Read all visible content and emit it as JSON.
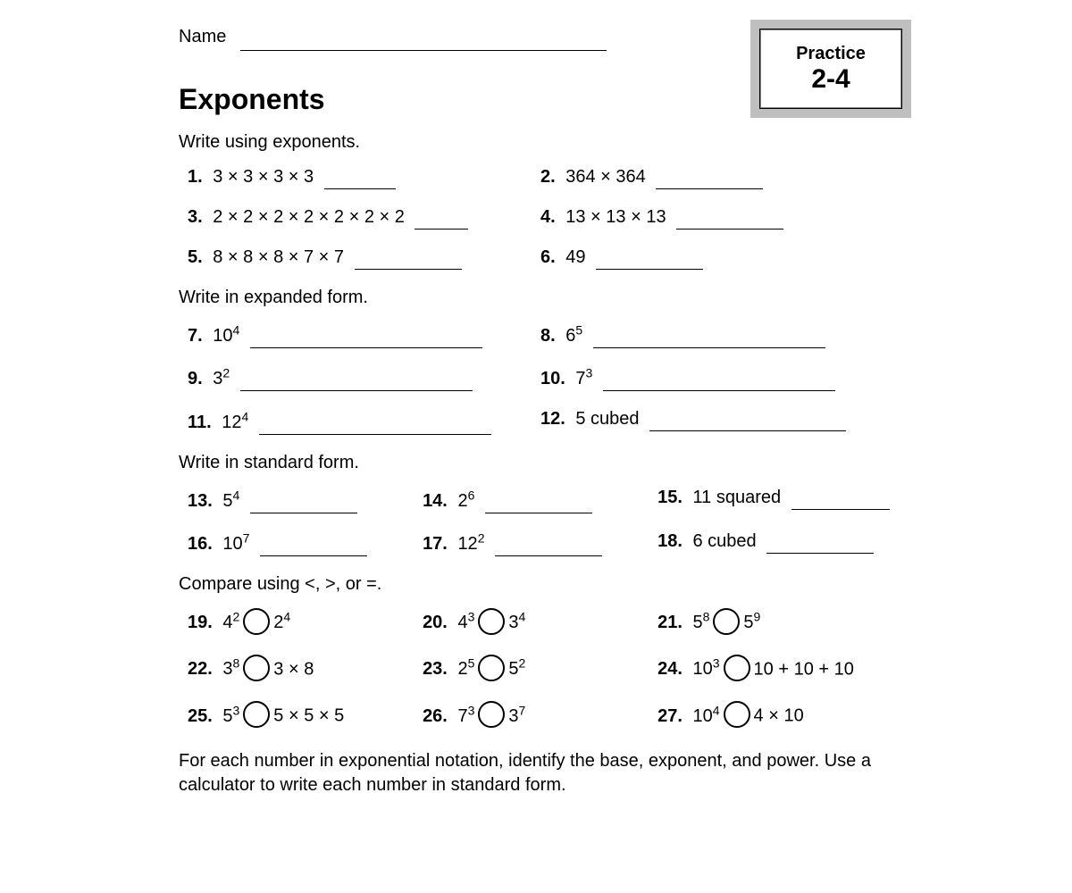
{
  "header": {
    "name_label": "Name",
    "badge_label": "Practice",
    "badge_number": "2-4"
  },
  "title": "Exponents",
  "section1": {
    "instruction": "Write using exponents.",
    "items": [
      {
        "n": "1.",
        "e": "3 × 3 × 3 × 3"
      },
      {
        "n": "2.",
        "e": "364 × 364"
      },
      {
        "n": "3.",
        "e": "2 × 2 × 2 × 2 × 2 × 2 × 2"
      },
      {
        "n": "4.",
        "e": "13 × 13 × 13"
      },
      {
        "n": "5.",
        "e": "8 × 8 × 8 × 7 × 7"
      },
      {
        "n": "6.",
        "e": "49"
      }
    ]
  },
  "section2": {
    "instruction": "Write in expanded form.",
    "items": [
      {
        "n": "7.",
        "b": "10",
        "s": "4"
      },
      {
        "n": "8.",
        "b": "6",
        "s": "5"
      },
      {
        "n": "9.",
        "b": "3",
        "s": "2"
      },
      {
        "n": "10.",
        "b": "7",
        "s": "3"
      },
      {
        "n": "11.",
        "b": "12",
        "s": "4"
      },
      {
        "n": "12.",
        "text": "5 cubed"
      }
    ]
  },
  "section3": {
    "instruction": "Write in standard form.",
    "items": [
      {
        "n": "13.",
        "b": "5",
        "s": "4"
      },
      {
        "n": "14.",
        "b": "2",
        "s": "6"
      },
      {
        "n": "15.",
        "text": "11 squared"
      },
      {
        "n": "16.",
        "b": "10",
        "s": "7"
      },
      {
        "n": "17.",
        "b": "12",
        "s": "2"
      },
      {
        "n": "18.",
        "text": "6 cubed"
      }
    ]
  },
  "section4": {
    "instruction": "Compare using <, >, or =.",
    "items": [
      {
        "n": "19.",
        "lb": "4",
        "ls": "2",
        "rb": "2",
        "rs": "4"
      },
      {
        "n": "20.",
        "lb": "4",
        "ls": "3",
        "rb": "3",
        "rs": "4"
      },
      {
        "n": "21.",
        "lb": "5",
        "ls": "8",
        "rb": "5",
        "rs": "9"
      },
      {
        "n": "22.",
        "lb": "3",
        "ls": "8",
        "rtext": "3 × 8"
      },
      {
        "n": "23.",
        "lb": "2",
        "ls": "5",
        "rb": "5",
        "rs": "2"
      },
      {
        "n": "24.",
        "lb": "10",
        "ls": "3",
        "rtext": "10 + 10 + 10"
      },
      {
        "n": "25.",
        "lb": "5",
        "ls": "3",
        "rtext": "5 × 5 × 5"
      },
      {
        "n": "26.",
        "lb": "7",
        "ls": "3",
        "rb": "3",
        "rs": "7"
      },
      {
        "n": "27.",
        "lb": "10",
        "ls": "4",
        "rtext": "4 × 10"
      }
    ]
  },
  "footer": "For each number in exponential notation, identify the base, exponent, and power. Use a calculator to write each number in standard form."
}
